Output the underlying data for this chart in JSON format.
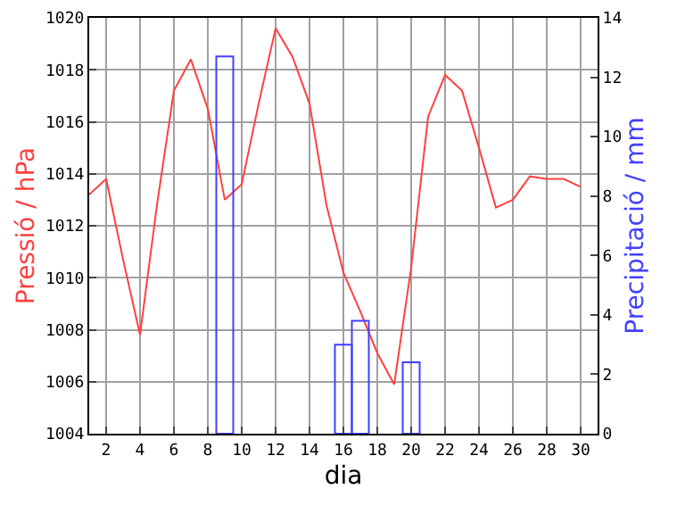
{
  "chart_data": {
    "type": "line",
    "xlabel": "dia",
    "ylabel": "Pressió / hPa",
    "y2label": "Precipitació / mm",
    "xlim": [
      1,
      31
    ],
    "xticks": [
      2,
      4,
      6,
      8,
      10,
      12,
      14,
      16,
      18,
      20,
      22,
      24,
      26,
      28,
      30
    ],
    "ylim": [
      1004,
      1020
    ],
    "yticks": [
      1004,
      1006,
      1008,
      1010,
      1012,
      1014,
      1016,
      1018,
      1020
    ],
    "y2lim": [
      0,
      14
    ],
    "y2ticks": [
      0,
      2,
      4,
      6,
      8,
      10,
      12,
      14
    ],
    "grid": true,
    "series": [
      {
        "color": "#ff4040",
        "x": [
          1,
          2,
          3,
          4,
          5,
          6,
          7,
          8,
          9,
          10,
          11,
          12,
          13,
          14,
          15,
          16,
          17,
          18,
          19,
          20,
          21,
          22,
          23,
          24,
          25,
          26,
          27,
          28,
          29,
          30
        ],
        "values": [
          1013.2,
          1013.8,
          1010.7,
          1007.8,
          1012.8,
          1017.2,
          1018.4,
          1016.5,
          1013.0,
          1013.6,
          1016.7,
          1019.6,
          1018.5,
          1016.7,
          1012.8,
          1010.2,
          1008.7,
          1007.1,
          1005.9,
          1010.4,
          1016.2,
          1017.8,
          1017.2,
          1015.0,
          1012.7,
          1013.0,
          1013.9,
          1013.8,
          1013.8,
          1013.5
        ]
      },
      {
        "type": "bar",
        "axis": "y2",
        "color": "#4040ff",
        "x": [
          9,
          16,
          17,
          20
        ],
        "values": [
          12.7,
          3.0,
          3.8,
          2.4
        ]
      }
    ]
  }
}
